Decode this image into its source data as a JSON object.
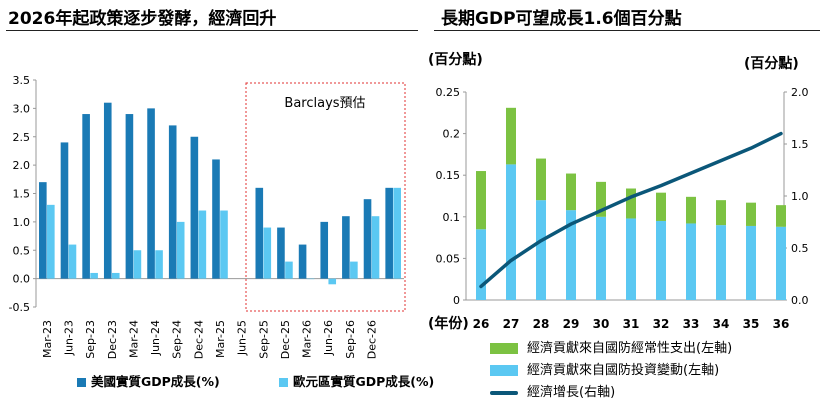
{
  "left_panel": {
    "title": "2026年起政策逐步發酵，經濟回升"
  },
  "right_panel": {
    "title": "長期GDP可望成長1.6個百分點"
  },
  "colors": {
    "dark_blue": "#1a7ab5",
    "light_blue": "#5bc8f2",
    "green": "#7cc242",
    "navy_line": "#0b5779",
    "forecast_border": "#e03030"
  },
  "chart_data": [
    {
      "type": "bar",
      "title": "2026年起政策逐步發酵，經濟回升",
      "categories": [
        "Mar-23",
        "Jun-23",
        "Sep-23",
        "Dec-23",
        "Mar-24",
        "Jun-24",
        "Sep-24",
        "Dec-24",
        "Mar-25",
        "Jun-25",
        "Sep-25",
        "Dec-25",
        "Mar-26",
        "Jun-26",
        "Sep-26",
        "Dec-26",
        "Dec-26"
      ],
      "series": [
        {
          "name": "美國實質GDP成長(%)",
          "values": [
            1.7,
            2.4,
            2.9,
            3.1,
            2.9,
            3.0,
            2.7,
            2.5,
            2.1,
            null,
            1.6,
            0.9,
            0.6,
            1.0,
            1.1,
            1.4,
            1.6
          ]
        },
        {
          "name": "歐元區實質GDP成長(%)",
          "values": [
            1.3,
            0.6,
            0.1,
            0.1,
            0.5,
            0.5,
            1.0,
            1.2,
            1.2,
            null,
            0.9,
            0.3,
            0.0,
            -0.1,
            0.3,
            1.1,
            1.6
          ]
        }
      ],
      "xticks": [
        "Mar-23",
        "Jun-23",
        "Sep-23",
        "Dec-23",
        "Mar-24",
        "Jun-24",
        "Sep-24",
        "Dec-24",
        "Mar-25",
        "Jun-25",
        "Sep-25",
        "Dec-25",
        "Mar-26",
        "Jun-26",
        "Sep-26",
        "Dec-26"
      ],
      "ylim": [
        -0.5,
        3.5
      ],
      "yticks": [
        "-0.5",
        "0.0",
        "0.5",
        "1.0",
        "1.5",
        "2.0",
        "2.5",
        "3.0",
        "3.5"
      ],
      "annotation": "Barclays預估",
      "legend": "bottom"
    },
    {
      "type": "bar",
      "title": "長期GDP可望成長1.6個百分點",
      "categories": [
        "26",
        "27",
        "28",
        "29",
        "30",
        "31",
        "32",
        "33",
        "34",
        "35",
        "36"
      ],
      "xlabel": "(年份)",
      "ylabel_left": "(百分點)",
      "ylabel_right": "(百分點)",
      "ylim_left": [
        0,
        0.25
      ],
      "ylim_right": [
        0,
        2.0
      ],
      "yticks_left": [
        "0",
        "0.05",
        "0.1",
        "0.15",
        "0.2",
        "0.25"
      ],
      "yticks_right": [
        "0.0",
        "0.5",
        "1.0",
        "1.5",
        "2.0"
      ],
      "series": [
        {
          "name": "經濟貢獻來自國防投資變動(左軸)",
          "axis": "left",
          "values": [
            0.085,
            0.163,
            0.12,
            0.108,
            0.1,
            0.098,
            0.095,
            0.092,
            0.09,
            0.089,
            0.088
          ]
        },
        {
          "name": "經濟貢獻來自國防經常性支出(左軸)",
          "axis": "left",
          "values": [
            0.07,
            0.068,
            0.05,
            0.044,
            0.042,
            0.036,
            0.034,
            0.032,
            0.03,
            0.028,
            0.026
          ]
        },
        {
          "name": "經濟增長(右軸)",
          "axis": "right",
          "type": "line",
          "values": [
            0.13,
            0.38,
            0.57,
            0.73,
            0.86,
            0.99,
            1.1,
            1.22,
            1.34,
            1.46,
            1.6
          ]
        }
      ],
      "legend": "bottom"
    }
  ]
}
